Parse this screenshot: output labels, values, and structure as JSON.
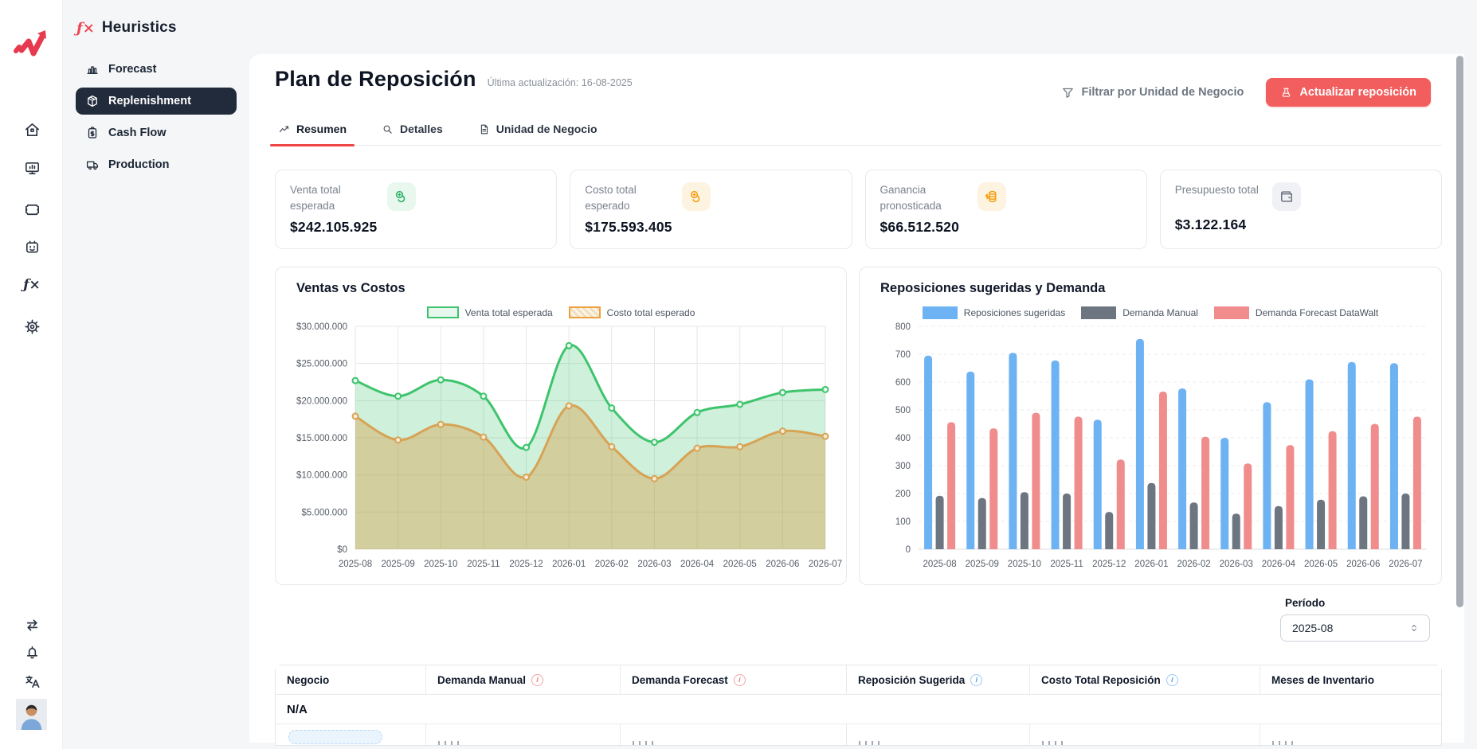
{
  "brand": {
    "fx_glyph": "ƒ×",
    "name": "Heuristics"
  },
  "sidebar": {
    "items": [
      {
        "label": "Forecast",
        "active": false
      },
      {
        "label": "Replenishment",
        "active": true
      },
      {
        "label": "Cash Flow",
        "active": false
      },
      {
        "label": "Production",
        "active": false
      }
    ]
  },
  "header": {
    "title": "Plan de Reposición",
    "last_update": "Última actualización: 16-08-2025",
    "filter_label": "Filtrar por Unidad de Negocio",
    "update_button_label": "Actualizar reposición"
  },
  "tabs": {
    "items": [
      {
        "label": "Resumen",
        "active": true
      },
      {
        "label": "Detalles",
        "active": false
      },
      {
        "label": "Unidad de Negocio",
        "active": false
      }
    ]
  },
  "kpis": {
    "cards": [
      {
        "label": "Venta total esperada",
        "value": "$242.105.925",
        "icon": "coins-icon",
        "accent": "#27b15f"
      },
      {
        "label": "Costo total esperado",
        "value": "$175.593.405",
        "icon": "coins-icon",
        "accent": "#f59e0b"
      },
      {
        "label": "Ganancia pronosticada",
        "value": "$66.512.520",
        "icon": "coin-stack-icon",
        "accent": "#f59e0b"
      },
      {
        "label": "Presupuesto total",
        "value": "$3.122.164",
        "icon": "wallet-icon",
        "accent": "#6b7280"
      }
    ]
  },
  "chart_data": [
    {
      "type": "line",
      "title": "Ventas vs Costos",
      "x": [
        "2025-08",
        "2025-09",
        "2025-10",
        "2025-11",
        "2025-12",
        "2026-01",
        "2026-02",
        "2026-03",
        "2026-04",
        "2026-05",
        "2026-06",
        "2026-07"
      ],
      "series": [
        {
          "name": "Venta total esperada",
          "color": "#3ec46d",
          "area_fill": "rgba(62,196,109,0.25)",
          "marker_fill": "#e7f7ee",
          "legend_fill": "#e7f7ee",
          "legend_hatch": false,
          "values": [
            22700000,
            20600000,
            22800000,
            20600000,
            13700000,
            27400000,
            19000000,
            14400000,
            18400000,
            19500000,
            21100000,
            21500000
          ]
        },
        {
          "name": "Costo total esperado",
          "color": "#d7a355",
          "area_fill": "rgba(213,163,82,0.45)",
          "marker_fill": "#f6ead3",
          "legend_fill": "#f2dfbe",
          "legend_hatch": true,
          "legend_border": "#ef9f3d",
          "values": [
            17900000,
            14700000,
            16800000,
            15100000,
            9700000,
            19300000,
            13800000,
            9500000,
            13600000,
            13800000,
            15900000,
            15200000
          ]
        }
      ],
      "ylim": [
        0,
        30000000
      ],
      "ytick_step": 5000000,
      "ytick_format": "currency",
      "grid": "solid",
      "legend_position": "top"
    },
    {
      "type": "bar",
      "title": "Reposiciones sugeridas y Demanda",
      "x": [
        "2025-08",
        "2025-09",
        "2025-10",
        "2025-11",
        "2025-12",
        "2026-01",
        "2026-02",
        "2026-03",
        "2026-04",
        "2026-05",
        "2026-06",
        "2026-07"
      ],
      "series": [
        {
          "name": "Reposiciones sugeridas",
          "color": "#6db2f2",
          "legend_fill": "#6db2f2",
          "legend_hatch": false,
          "values": [
            695,
            638,
            705,
            678,
            465,
            755,
            577,
            400,
            528,
            610,
            672,
            668
          ]
        },
        {
          "name": "Demanda Manual",
          "color": "#6d7580",
          "legend_fill": "#6d7580",
          "legend_hatch": false,
          "values": [
            192,
            184,
            205,
            200,
            134,
            238,
            168,
            128,
            155,
            178,
            190,
            200
          ]
        },
        {
          "name": "Demanda Forecast DataWalt",
          "color": "#f08c8c",
          "legend_fill": "#f08c8c",
          "legend_hatch": false,
          "values": [
            456,
            434,
            490,
            476,
            322,
            566,
            404,
            308,
            374,
            424,
            450,
            476
          ]
        }
      ],
      "ylim": [
        0,
        800
      ],
      "ytick_step": 100,
      "ytick_format": "plain",
      "grid": "dashed",
      "legend_position": "top"
    }
  ],
  "filters": {
    "period_label": "Período",
    "period_value": "2025-08"
  },
  "table": {
    "columns": [
      {
        "label": "Negocio",
        "info": ""
      },
      {
        "label": "Demanda Manual",
        "info": "red"
      },
      {
        "label": "Demanda Forecast",
        "info": "red"
      },
      {
        "label": "Reposición Sugerida",
        "info": "blue"
      },
      {
        "label": "Costo Total Reposición",
        "info": "blue"
      },
      {
        "label": "Meses de Inventario",
        "info": ""
      }
    ],
    "group_row_label": "N/A",
    "partial_row_visible": true
  },
  "colors": {
    "accent_red": "#f25d5d",
    "navy": "#212b3b",
    "tab_underline": "#ee4444"
  }
}
